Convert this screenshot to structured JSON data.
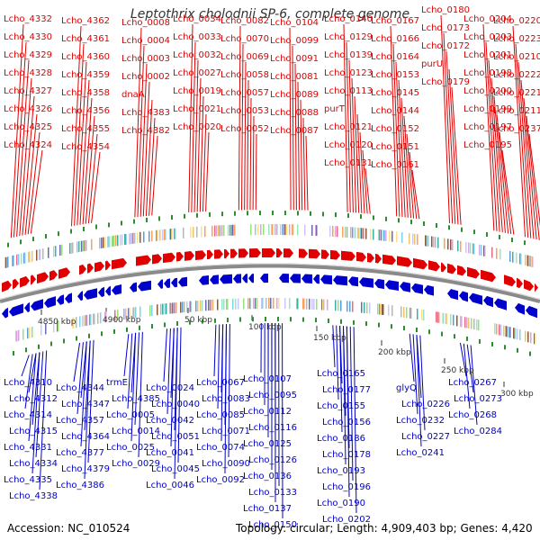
{
  "title": "Leptothrix cholodnii SP-6, complete genome",
  "footer": {
    "accession": "Accession: NC_010524",
    "summary": "Topology: circular; Length: 4,909,403 bp; Genes: 4,420"
  },
  "colors": {
    "forward": "#e00000",
    "reverse": "#0000cc",
    "backbone": "#888888",
    "ticks_marker": "#2e8b2e"
  },
  "top_labels": [
    "Lcho_4332",
    "Lcho_4330",
    "Lcho_4329",
    "Lcho_4328",
    "Lcho_4327",
    "Lcho_4326",
    "Lcho_4325",
    "Lcho_4324",
    "Lcho_4362",
    "Lcho_4361",
    "Lcho_4360",
    "Lcho_4359",
    "Lcho_4358",
    "Lcho_4356",
    "Lcho_4355",
    "Lcho_4354",
    "Lcho_0008",
    "Lcho_0004",
    "Lcho_0003",
    "Lcho_0002",
    "dnaA",
    "Lcho_4383",
    "Lcho_4382",
    "Lcho_0034",
    "Lcho_0033",
    "Lcho_0032",
    "Lcho_0027",
    "Lcho_0019",
    "Lcho_0021",
    "Lcho_0020",
    "Lcho_0082",
    "Lcho_0070",
    "Lcho_0069",
    "Lcho_0058",
    "Lcho_0057",
    "Lcho_0053",
    "Lcho_0052",
    "Lcho_0104",
    "Lcho_0099",
    "Lcho_0091",
    "Lcho_0081",
    "Lcho_0089",
    "Lcho_0088",
    "Lcho_0087",
    "Lcho_0140",
    "Lcho_0129",
    "Lcho_0139",
    "Lcho_0123",
    "Lcho_0113",
    "purT",
    "Lcho_0121",
    "Lcho_0120",
    "Lcho_0131",
    "Lcho_0167",
    "Lcho_0166",
    "Lcho_0164",
    "Lcho_0153",
    "Lcho_0145",
    "Lcho_0144",
    "Lcho_0152",
    "Lcho_0151",
    "Lcho_0161",
    "Lcho_0180",
    "Lcho_0173",
    "Lcho_0172",
    "purU",
    "Lcho_0179",
    "Lcho_0204",
    "Lcho_0203",
    "Lcho_0201",
    "Lcho_0198",
    "Lcho_0200",
    "Lcho_0199",
    "Lcho_0197",
    "Lcho_0195",
    "Lcho_0220",
    "Lcho_0223",
    "Lcho_0210",
    "Lcho_0222",
    "Lcho_0221",
    "Lcho_0211",
    "Lcho_0237"
  ],
  "bottom_labels": [
    "Lcho_4310",
    "Lcho_4312",
    "Lcho_4314",
    "Lcho_4315",
    "Lcho_4331",
    "Lcho_4334",
    "Lcho_4335",
    "Lcho_4338",
    "Lcho_4344",
    "Lcho_4347",
    "Lcho_4357",
    "Lcho_4364",
    "Lcho_4377",
    "Lcho_4379",
    "Lcho_4386",
    "trmE",
    "Lcho_4385",
    "Lcho_0005",
    "Lcho_0014",
    "Lcho_0025",
    "Lcho_0029",
    "Lcho_0024",
    "Lcho_0040",
    "Lcho_0042",
    "Lcho_0051",
    "Lcho_0041",
    "Lcho_0045",
    "Lcho_0046",
    "Lcho_0067",
    "Lcho_0083",
    "Lcho_0085",
    "Lcho_0071",
    "Lcho_0074",
    "Lcho_0090",
    "Lcho_0092",
    "Lcho_0107",
    "Lcho_0095",
    "Lcho_0112",
    "Lcho_0116",
    "Lcho_0125",
    "Lcho_0126",
    "Lcho_0136",
    "Lcho_0133",
    "Lcho_0137",
    "Lcho_0150",
    "Lcho_0165",
    "Lcho_0177",
    "Lcho_0155",
    "Lcho_0156",
    "Lcho_0186",
    "Lcho_0178",
    "Lcho_0193",
    "Lcho_0196",
    "Lcho_0190",
    "Lcho_0202",
    "glyQ",
    "Lcho_0226",
    "Lcho_0232",
    "Lcho_0227",
    "Lcho_0241",
    "Lcho_0267",
    "Lcho_0273",
    "Lcho_0268",
    "Lcho_0284"
  ],
  "scale_labels": [
    "4850 kbp",
    "4900 kbp",
    "50 kbp",
    "100 kbp",
    "150 kbp",
    "200 kbp",
    "250 kbp",
    "300 kbp"
  ]
}
